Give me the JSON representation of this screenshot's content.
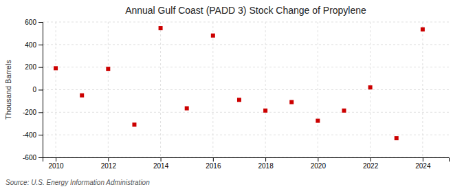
{
  "chart_data": {
    "type": "scatter",
    "title": "Annual Gulf Coast (PADD 3) Stock Change of Propylene",
    "ylabel": "Thousand Barrels",
    "annotations": [
      "Source: U.S. Energy Information Administration"
    ],
    "x": [
      2010,
      2011,
      2012,
      2013,
      2014,
      2015,
      2016,
      2017,
      2018,
      2019,
      2020,
      2021,
      2022,
      2023,
      2024
    ],
    "values": [
      190,
      -50,
      185,
      -310,
      545,
      -165,
      480,
      -90,
      -185,
      -110,
      -275,
      -185,
      20,
      -430,
      535
    ],
    "color": "#cc0000",
    "marker": "square",
    "xlim": [
      2009.5,
      2025.0
    ],
    "xticks": [
      2010,
      2012,
      2014,
      2016,
      2018,
      2020,
      2022,
      2024
    ],
    "ylim": [
      -600,
      600
    ],
    "yticks": [
      -600,
      -400,
      -200,
      0,
      200,
      400,
      600
    ],
    "grid": true
  }
}
